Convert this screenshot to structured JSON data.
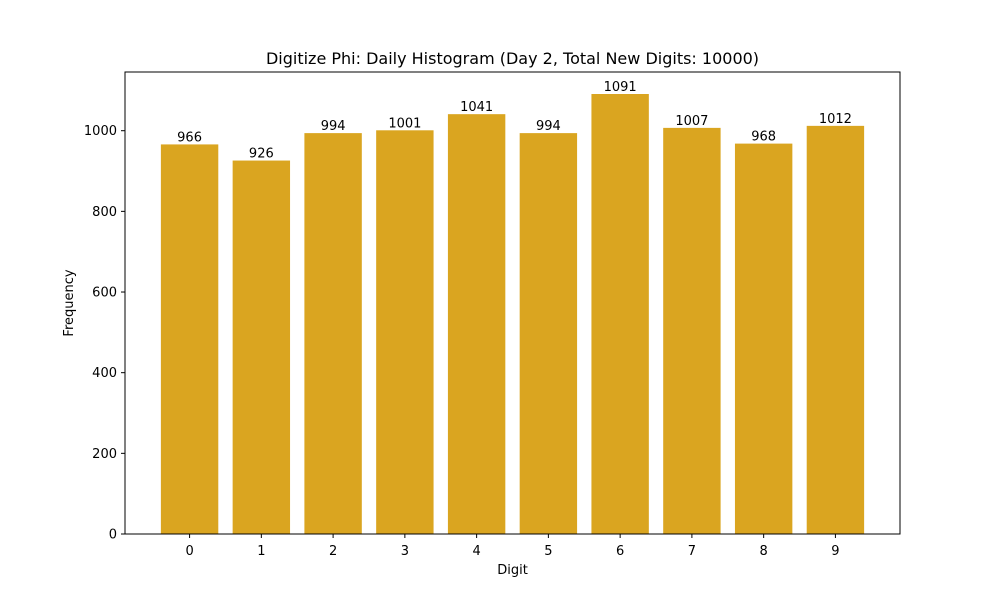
{
  "chart_data": {
    "type": "bar",
    "title": "Digitize Phi: Daily Histogram (Day 2, Total New Digits: 10000)",
    "xlabel": "Digit",
    "ylabel": "Frequency",
    "categories": [
      "0",
      "1",
      "2",
      "3",
      "4",
      "5",
      "6",
      "7",
      "8",
      "9"
    ],
    "values": [
      966,
      926,
      994,
      1001,
      1041,
      994,
      1091,
      1007,
      968,
      1012
    ],
    "data_labels": [
      "966",
      "926",
      "994",
      "1001",
      "1041",
      "994",
      "1091",
      "1007",
      "968",
      "1012"
    ],
    "ylim": [
      0,
      1145.55
    ],
    "yticks": [
      0,
      200,
      400,
      600,
      800,
      1000
    ],
    "grid": false,
    "bar_color": "#DAA520"
  }
}
